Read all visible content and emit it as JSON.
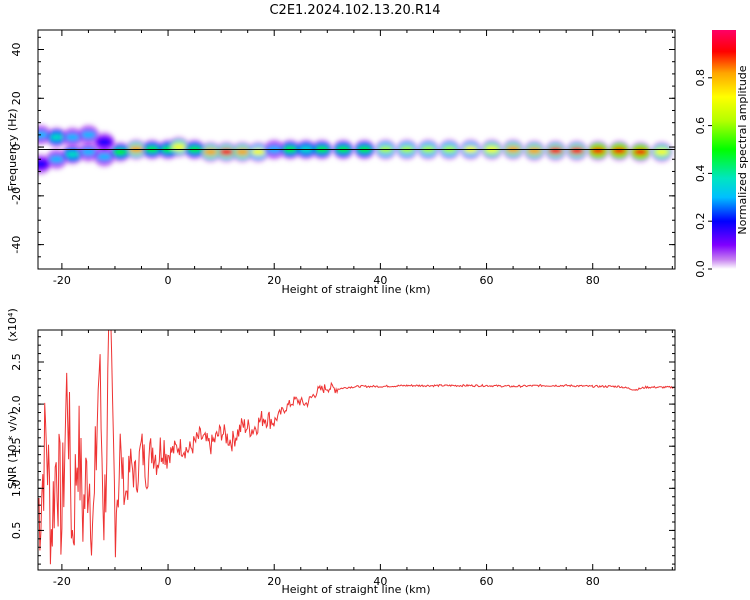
{
  "title": "C2E1.2024.102.13.20.R14",
  "chart_data": [
    {
      "type": "heatmap",
      "xlabel": "Height of straight line (km)",
      "ylabel": "Frequency (Hz)",
      "xlim": [
        -24.5,
        95.5
      ],
      "ylim": [
        -50,
        48
      ],
      "xticks": [
        -20,
        0,
        20,
        40,
        60,
        80
      ],
      "yticks": [
        -40,
        -20,
        0,
        20,
        40
      ],
      "grid": false,
      "colorbar": {
        "label": "Normalized spectral amplitude",
        "range": [
          0,
          1
        ],
        "ticks": [
          "0.0",
          "0.2",
          "0.4",
          "0.6",
          "0.8"
        ],
        "colors": [
          "#ffffff",
          "#c680f0",
          "#8000ff",
          "#0000ff",
          "#00bfff",
          "#00e6c0",
          "#00ff00",
          "#b4ff00",
          "#ffff00",
          "#ffa500",
          "#ff0000",
          "#ff0066"
        ]
      },
      "zero_line_frequency": -1,
      "ridge": [
        {
          "x": -24,
          "freq": 5,
          "amp": 0.35
        },
        {
          "x": -24,
          "freq": -7,
          "amp": 0.3
        },
        {
          "x": -21,
          "freq": 4,
          "amp": 0.45
        },
        {
          "x": -21,
          "freq": -5,
          "amp": 0.4
        },
        {
          "x": -18,
          "freq": 4,
          "amp": 0.4
        },
        {
          "x": -18,
          "freq": -3,
          "amp": 0.45
        },
        {
          "x": -15,
          "freq": 5,
          "amp": 0.35
        },
        {
          "x": -15,
          "freq": -2,
          "amp": 0.4
        },
        {
          "x": -12,
          "freq": 2,
          "amp": 0.3
        },
        {
          "x": -12,
          "freq": -4,
          "amp": 0.35
        },
        {
          "x": -9,
          "freq": -2,
          "amp": 0.55
        },
        {
          "x": -6,
          "freq": -1,
          "amp": 0.85
        },
        {
          "x": -3,
          "freq": -1,
          "amp": 0.55
        },
        {
          "x": 0,
          "freq": -1,
          "amp": 0.5
        },
        {
          "x": 2,
          "freq": 0,
          "amp": 0.75
        },
        {
          "x": 5,
          "freq": -1,
          "amp": 0.5
        },
        {
          "x": 8,
          "freq": -2,
          "amp": 0.85
        },
        {
          "x": 11,
          "freq": -2,
          "amp": 0.9
        },
        {
          "x": 14,
          "freq": -2,
          "amp": 0.85
        },
        {
          "x": 17,
          "freq": -2,
          "amp": 0.7
        },
        {
          "x": 20,
          "freq": -1,
          "amp": 0.4
        },
        {
          "x": 23,
          "freq": -1,
          "amp": 0.5
        },
        {
          "x": 26,
          "freq": -1,
          "amp": 0.45
        },
        {
          "x": 29,
          "freq": -1,
          "amp": 0.55
        },
        {
          "x": 33,
          "freq": -1,
          "amp": 0.5
        },
        {
          "x": 37,
          "freq": -1,
          "amp": 0.55
        },
        {
          "x": 41,
          "freq": -1,
          "amp": 0.6
        },
        {
          "x": 45,
          "freq": -1,
          "amp": 0.62
        },
        {
          "x": 49,
          "freq": -1,
          "amp": 0.65
        },
        {
          "x": 53,
          "freq": -1,
          "amp": 0.68
        },
        {
          "x": 57,
          "freq": -1,
          "amp": 0.72
        },
        {
          "x": 61,
          "freq": -1,
          "amp": 0.76
        },
        {
          "x": 65,
          "freq": -1,
          "amp": 0.8
        },
        {
          "x": 69,
          "freq": -1.5,
          "amp": 0.85
        },
        {
          "x": 73,
          "freq": -1.5,
          "amp": 0.88
        },
        {
          "x": 77,
          "freq": -1.5,
          "amp": 0.9
        },
        {
          "x": 81,
          "freq": -1.5,
          "amp": 0.92
        },
        {
          "x": 85,
          "freq": -1.5,
          "amp": 0.95
        },
        {
          "x": 89,
          "freq": -2,
          "amp": 0.95
        },
        {
          "x": 93,
          "freq": -2,
          "amp": 0.75
        }
      ]
    },
    {
      "type": "line",
      "xlabel": "Height of straight line (km)",
      "ylabel": "SNR (10 * v/v)",
      "y_multiplier": "(x10⁴)",
      "xlim": [
        -24.5,
        95.5
      ],
      "ylim": [
        0.03,
        2.88
      ],
      "xticks": [
        -20,
        0,
        20,
        40,
        60,
        80
      ],
      "yticks": [
        "0.5",
        "1.0",
        "1.5",
        "2.0",
        "2.5"
      ],
      "grid": false,
      "series": [
        {
          "color": "#ee3333",
          "x": [
            -24,
            -23,
            -22,
            -21,
            -20,
            -19,
            -18,
            -17,
            -16,
            -15,
            -14,
            -13,
            -12,
            -11,
            -10,
            -9,
            -8,
            -7,
            -6,
            -5,
            -4,
            -3,
            -2,
            -1,
            0,
            2,
            4,
            6,
            8,
            10,
            12,
            14,
            16,
            18,
            20,
            22,
            24,
            26,
            28,
            30,
            32,
            34,
            36,
            40,
            45,
            50,
            55,
            60,
            65,
            70,
            75,
            80,
            85,
            88,
            90,
            95
          ],
          "y": [
            0.8,
            1.7,
            0.5,
            1.4,
            0.6,
            2.3,
            0.4,
            1.6,
            0.7,
            1.3,
            0.5,
            2.5,
            0.6,
            2.85,
            0.8,
            1.4,
            0.9,
            1.3,
            1.1,
            1.5,
            1.2,
            1.5,
            1.35,
            1.55,
            1.4,
            1.5,
            1.45,
            1.62,
            1.5,
            1.68,
            1.55,
            1.75,
            1.7,
            1.85,
            1.8,
            1.95,
            2.05,
            2.0,
            2.15,
            2.2,
            2.18,
            2.2,
            2.21,
            2.21,
            2.22,
            2.22,
            2.22,
            2.22,
            2.21,
            2.22,
            2.22,
            2.21,
            2.21,
            2.17,
            2.2,
            2.2
          ]
        }
      ]
    }
  ]
}
